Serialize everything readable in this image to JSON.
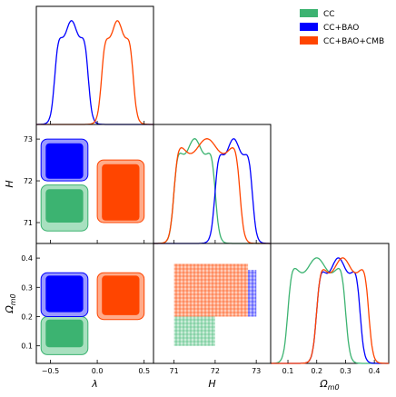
{
  "chart_data": {
    "type": "corner",
    "parameters": [
      {
        "key": "lambda",
        "label": "λ",
        "range": [
          -0.65,
          0.6
        ],
        "ticks": [
          -0.5,
          0.0,
          0.5
        ],
        "tick_labels": [
          "−0.5",
          "0.0",
          "0.5"
        ]
      },
      {
        "key": "H",
        "label": "H",
        "range": [
          70.5,
          73.35
        ],
        "ticks": [
          71,
          72,
          73
        ],
        "tick_labels": [
          "71",
          "72",
          "73"
        ]
      },
      {
        "key": "Om",
        "label": "Ω",
        "label_sub": "m0",
        "range": [
          0.04,
          0.45
        ],
        "ticks": [
          0.1,
          0.2,
          0.3,
          0.4
        ],
        "tick_labels": [
          "0.1",
          "0.2",
          "0.3",
          "0.4"
        ]
      }
    ],
    "legend": {
      "placement": "top-right",
      "entries": [
        {
          "name": "CC",
          "color": "#3cb371"
        },
        {
          "name": "CC+BAO",
          "color": "#0000ff"
        },
        {
          "name": "CC+BAO+CMB",
          "color": "#ff4500"
        }
      ]
    },
    "series": [
      {
        "name": "CC",
        "color": "#3cb371",
        "outer_color": "#a8e0bf",
        "marginals": {
          "lambda": null,
          "H": [
            71.0,
            72.0
          ],
          "Om": [
            0.1,
            0.3
          ]
        },
        "contours": {
          "lambda_H": {
            "x": [
              -0.6,
              -0.1
            ],
            "y": [
              70.8,
              71.9
            ],
            "inner_x": [
              -0.55,
              -0.15
            ],
            "inner_y": [
              71.0,
              71.8
            ]
          },
          "lambda_Om": {
            "x": [
              -0.6,
              -0.1
            ],
            "y": [
              0.07,
              0.2
            ],
            "inner_x": [
              -0.55,
              -0.15
            ],
            "inner_y": [
              0.095,
              0.19
            ]
          },
          "H_Om": {
            "x": [
              71.0,
              72.0
            ],
            "y": [
              0.1,
              0.2
            ],
            "style": "hatched"
          }
        }
      },
      {
        "name": "CC+BAO",
        "color": "#0000ff",
        "outer_color": "#9999ff",
        "marginals": {
          "lambda": [
            -0.45,
            -0.1
          ],
          "H": [
            72.0,
            72.9
          ],
          "Om": [
            0.2,
            0.35
          ]
        },
        "contours": {
          "lambda_H": {
            "x": [
              -0.6,
              -0.1
            ],
            "y": [
              72.0,
              73.0
            ],
            "inner_x": [
              -0.55,
              -0.15
            ],
            "inner_y": [
              72.05,
              72.9
            ]
          },
          "lambda_Om": {
            "x": [
              -0.6,
              -0.1
            ],
            "y": [
              0.2,
              0.35
            ],
            "inner_x": [
              -0.55,
              -0.15
            ],
            "inner_y": [
              0.215,
              0.34
            ]
          },
          "H_Om": {
            "x": [
              72.0,
              73.0
            ],
            "y": [
              0.2,
              0.36
            ],
            "style": "hatched"
          }
        }
      },
      {
        "name": "CC+BAO+CMB",
        "color": "#ff4500",
        "outer_color": "#ffab8a",
        "marginals": {
          "lambda": [
            0.05,
            0.38
          ],
          "H": [
            71.0,
            72.6
          ],
          "Om": [
            0.2,
            0.38
          ]
        },
        "contours": {
          "lambda_H": {
            "x": [
              -0.0,
              0.5
            ],
            "y": [
              71.0,
              72.5
            ],
            "inner_x": [
              0.05,
              0.45
            ],
            "inner_y": [
              71.05,
              72.4
            ]
          },
          "lambda_Om": {
            "x": [
              -0.0,
              0.5
            ],
            "y": [
              0.19,
              0.35
            ],
            "inner_x": [
              0.05,
              0.45
            ],
            "inner_y": [
              0.205,
              0.34
            ]
          },
          "H_Om": {
            "x": [
              71.0,
              72.8
            ],
            "y": [
              0.2,
              0.38
            ],
            "style": "hatched"
          }
        }
      }
    ],
    "grid": false
  }
}
